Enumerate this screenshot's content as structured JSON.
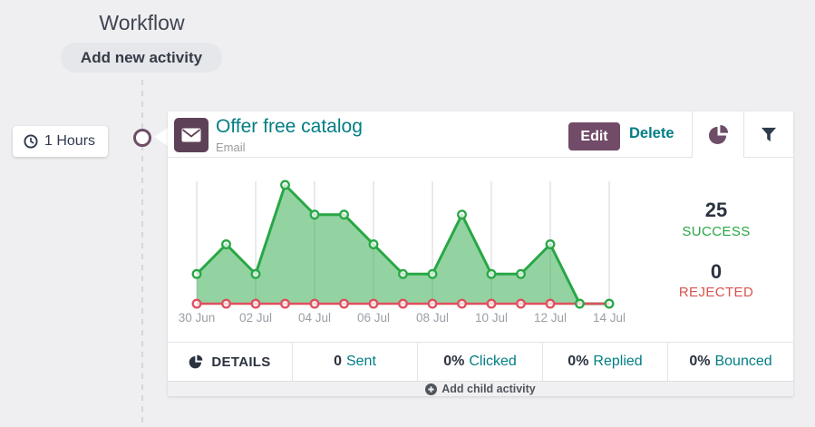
{
  "workflow": {
    "title": "Workflow",
    "add_new_activity_label": "Add new activity",
    "trigger_badge_label": "1 Hours"
  },
  "activity_card": {
    "title": "Offer free catalog",
    "subtitle": "Email",
    "edit_label": "Edit",
    "delete_label": "Delete",
    "stats": {
      "success_value": "25",
      "success_label": "SUCCESS",
      "rejected_value": "0",
      "rejected_label": "REJECTED"
    },
    "footer": {
      "details_label": "DETAILS",
      "metrics": [
        {
          "value": "0",
          "label": "Sent"
        },
        {
          "value": "0%",
          "label": "Clicked"
        },
        {
          "value": "0%",
          "label": "Replied"
        },
        {
          "value": "0%",
          "label": "Bounced"
        }
      ]
    },
    "add_child_label": "Add child activity"
  },
  "chart_data": {
    "type": "area",
    "x": [
      "30 Jun",
      "01 Jul",
      "02 Jul",
      "03 Jul",
      "04 Jul",
      "05 Jul",
      "06 Jul",
      "07 Jul",
      "08 Jul",
      "09 Jul",
      "10 Jul",
      "11 Jul",
      "12 Jul",
      "13 Jul",
      "14 Jul"
    ],
    "tick_labels": [
      "30 Jun",
      "02 Jul",
      "04 Jul",
      "06 Jul",
      "08 Jul",
      "10 Jul",
      "12 Jul",
      "14 Jul"
    ],
    "series": [
      {
        "name": "success",
        "color": "#28a745",
        "values": [
          1,
          2,
          1,
          4,
          3,
          3,
          2,
          1,
          1,
          3,
          1,
          1,
          2,
          0,
          0
        ]
      },
      {
        "name": "rejected",
        "color": "#e04f5f",
        "values": [
          0,
          0,
          0,
          0,
          0,
          0,
          0,
          0,
          0,
          0,
          0,
          0,
          0,
          0,
          0
        ]
      }
    ],
    "ylim": [
      0,
      4.3
    ],
    "grid": "vertical",
    "legend": "none"
  },
  "icons": {
    "email": "envelope-icon",
    "clock": "clock-icon",
    "pie": "pie-chart-icon",
    "filter": "filter-icon",
    "plus": "plus-circle-icon"
  },
  "colors": {
    "accent_teal": "#017e84",
    "brand_purple": "#714b67",
    "icon_plum": "#5d4157",
    "success_green": "#28a745",
    "rejected_red": "#d9534f",
    "text_dark": "#2b3340",
    "page_background": "#efeff1"
  }
}
